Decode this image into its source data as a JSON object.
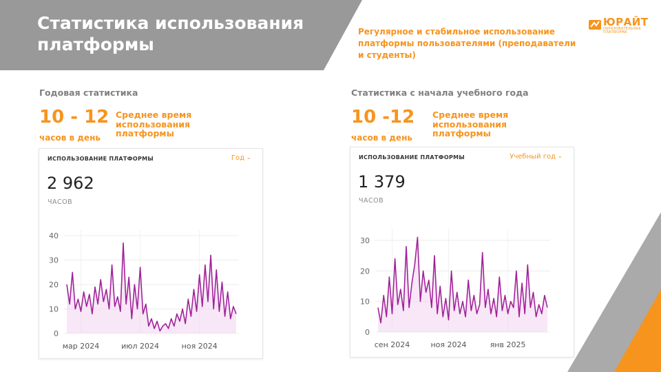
{
  "header": {
    "title": "Статистика использования платформы",
    "subtitle": "Регулярное и стабильное использование платформы пользователями (преподаватели и студенты)"
  },
  "logo": {
    "name": "ЮРАЙТ",
    "line1": "ОБРАЗОВАТЕЛЬНАЯ",
    "line2": "ПЛАТФОРМА"
  },
  "colors": {
    "header_gray": "#999999",
    "accent": "#f7941d",
    "line": "#a0229a",
    "area": "#f3d7f0"
  },
  "left": {
    "section_label": "Годовая статистика",
    "range": "10 - 12",
    "per_day": "часов в день",
    "avg": "Среднее время использования платформы",
    "card_title": "ИСПОЛЬЗОВАНИЕ ПЛАТФОРМЫ",
    "period": "Год",
    "period_icon": "chevron-down-icon",
    "total": "2 962",
    "unit": "ЧАСОВ"
  },
  "right": {
    "section_label": "Статистика с начала учебного года",
    "range": "10 -12",
    "per_day": "часов в день",
    "avg": "Среднее время использования платформы",
    "card_title": "ИСПОЛЬЗОВАНИЕ ПЛАТФОРМЫ",
    "period": "Учебный год",
    "period_icon": "chevron-down-icon",
    "total": "1 379",
    "unit": "ЧАСОВ"
  },
  "chart_data": [
    {
      "type": "area",
      "y_ticks": [
        0,
        10,
        20,
        30,
        40
      ],
      "ylim": [
        0,
        40
      ],
      "xlim": [
        0,
        120
      ],
      "x_ticks": [
        {
          "label": "мар 2024",
          "x": 10
        },
        {
          "label": "июл 2024",
          "x": 52
        },
        {
          "label": "ноя 2024",
          "x": 94
        }
      ],
      "x": [
        0,
        2,
        4,
        6,
        8,
        10,
        12,
        14,
        16,
        18,
        20,
        22,
        24,
        26,
        28,
        30,
        32,
        34,
        36,
        38,
        40,
        42,
        44,
        46,
        48,
        50,
        52,
        54,
        56,
        58,
        60,
        62,
        64,
        66,
        68,
        70,
        72,
        74,
        76,
        78,
        80,
        82,
        84,
        86,
        88,
        90,
        92,
        94,
        96,
        98,
        100,
        102,
        104,
        106,
        108,
        110,
        112,
        114,
        116,
        118,
        120
      ],
      "values": [
        20,
        12,
        25,
        10,
        14,
        9,
        17,
        11,
        16,
        8,
        19,
        12,
        22,
        13,
        18,
        10,
        28,
        11,
        15,
        9,
        37,
        12,
        23,
        6,
        20,
        10,
        27,
        8,
        12,
        3,
        6,
        2,
        5,
        1,
        3,
        4,
        2,
        6,
        3,
        8,
        5,
        10,
        4,
        14,
        7,
        18,
        9,
        24,
        11,
        28,
        13,
        32,
        10,
        26,
        9,
        21,
        7,
        17,
        6,
        11,
        8
      ]
    },
    {
      "type": "area",
      "y_ticks": [
        0,
        10,
        20,
        30
      ],
      "ylim": [
        0,
        32
      ],
      "xlim": [
        0,
        120
      ],
      "x_ticks": [
        {
          "label": "сен 2024",
          "x": 10
        },
        {
          "label": "ноя 2024",
          "x": 50
        },
        {
          "label": "янв 2025",
          "x": 92
        }
      ],
      "x": [
        0,
        2,
        4,
        6,
        8,
        10,
        12,
        14,
        16,
        18,
        20,
        22,
        24,
        26,
        28,
        30,
        32,
        34,
        36,
        38,
        40,
        42,
        44,
        46,
        48,
        50,
        52,
        54,
        56,
        58,
        60,
        62,
        64,
        66,
        68,
        70,
        72,
        74,
        76,
        78,
        80,
        82,
        84,
        86,
        88,
        90,
        92,
        94,
        96,
        98,
        100,
        102,
        104,
        106,
        108,
        110,
        112,
        114,
        116,
        118,
        120
      ],
      "values": [
        8,
        3,
        12,
        5,
        18,
        6,
        24,
        9,
        14,
        7,
        28,
        8,
        16,
        22,
        31,
        10,
        20,
        13,
        17,
        8,
        25,
        6,
        15,
        5,
        11,
        4,
        20,
        7,
        13,
        6,
        10,
        5,
        17,
        7,
        12,
        6,
        9,
        26,
        8,
        14,
        6,
        11,
        5,
        18,
        7,
        12,
        6,
        10,
        8,
        20,
        5,
        16,
        6,
        22,
        8,
        13,
        5,
        9,
        6,
        12,
        8
      ]
    }
  ]
}
